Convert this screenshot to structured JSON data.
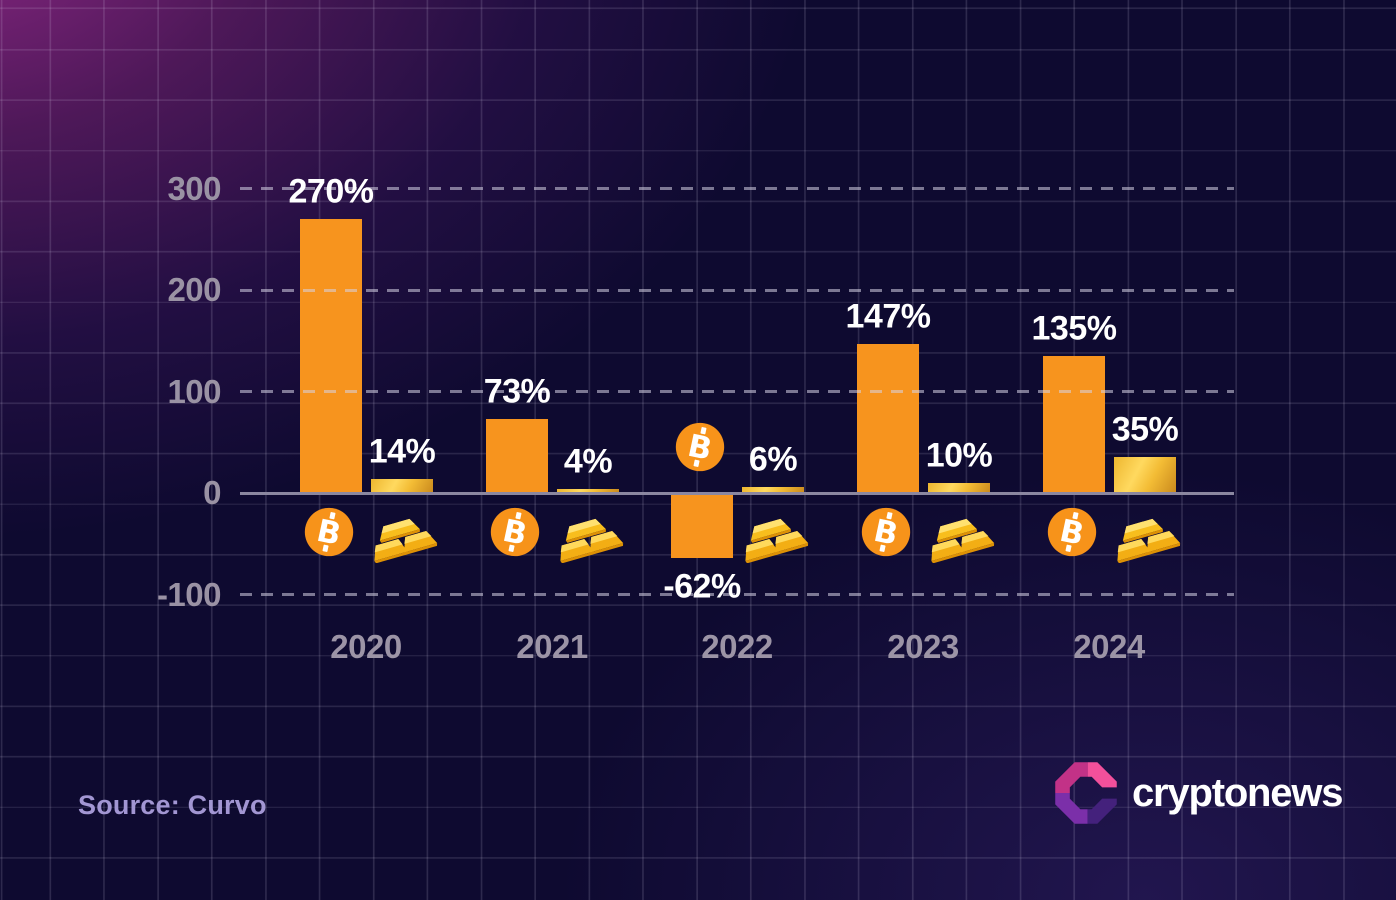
{
  "chart_data": {
    "type": "bar",
    "categories": [
      "2020",
      "2021",
      "2022",
      "2023",
      "2024"
    ],
    "series": [
      {
        "name": "Bitcoin",
        "icon": "bitcoin-icon",
        "color": "#F7941E",
        "values": [
          270,
          73,
          -62,
          147,
          135
        ],
        "labels": [
          "270%",
          "73%",
          "-62%",
          "147%",
          "135%"
        ]
      },
      {
        "name": "Gold",
        "icon": "gold-bars-icon",
        "color": "#F2B31C",
        "values": [
          14,
          4,
          6,
          10,
          35
        ],
        "labels": [
          "14%",
          "4%",
          "6%",
          "10%",
          "35%"
        ]
      }
    ],
    "value_suffix": "%",
    "ylim": [
      -100,
      300
    ],
    "y_axis": {
      "ticks": [
        {
          "value": 300,
          "label": "300"
        },
        {
          "value": 200,
          "label": "200"
        },
        {
          "value": 100,
          "label": "100"
        },
        {
          "value": 0,
          "label": "0"
        },
        {
          "value": -100,
          "label": "-100"
        }
      ]
    },
    "grid": "dashed horizontal gridlines, solid zero axis",
    "legend": "bitcoin and gold icons shown beside each bar pair"
  },
  "source": {
    "label": "Source: Curvo"
  },
  "branding": {
    "name": "cryptonews"
  },
  "colors": {
    "bitcoin_orange": "#F7941E",
    "gold": "#F2B31C",
    "axis_line": "#8B87A0",
    "tick_label": "#9A92A4",
    "value_label": "#FFFFFF",
    "source_text": "#A296D3",
    "background_top_left": "#5E1C63",
    "background_base": "#0E0A30",
    "logo_pink": "#F2509B",
    "logo_magenta": "#C23287",
    "logo_purple": "#7B2FA9",
    "logo_dark_purple": "#44217C"
  }
}
